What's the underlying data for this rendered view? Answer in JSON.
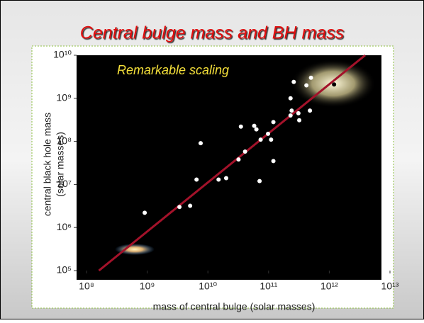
{
  "chart_data": {
    "type": "scatter",
    "title": "Central bulge mass and BH mass",
    "annotation": "Remarkable scaling",
    "x_label": "mass of central bulge (solar masses)",
    "y_label": [
      "central black hole mass",
      "(solar masses)"
    ],
    "log_x": true,
    "log_y": true,
    "xlim": [
      100000000.0,
      10000000000000.0
    ],
    "ylim": [
      100000.0,
      10000000000.0
    ],
    "xticks": [
      {
        "value": 100000000.0,
        "label": "10⁸"
      },
      {
        "value": 1000000000.0,
        "label": "10⁹"
      },
      {
        "value": 10000000000.0,
        "label": "10¹⁰"
      },
      {
        "value": 100000000000.0,
        "label": "10¹¹"
      },
      {
        "value": 1000000000000.0,
        "label": "10¹²"
      },
      {
        "value": 10000000000000.0,
        "label": "10¹³"
      }
    ],
    "yticks": [
      {
        "value": 100000.0,
        "label": "10⁵"
      },
      {
        "value": 1000000.0,
        "label": "10⁶"
      },
      {
        "value": 10000000.0,
        "label": "10⁷"
      },
      {
        "value": 100000000.0,
        "label": "10⁸"
      },
      {
        "value": 1000000000.0,
        "label": "10⁹"
      },
      {
        "value": 10000000000.0,
        "label": "10¹⁰"
      }
    ],
    "series": [
      {
        "color": "#ffffff",
        "x": [
          910000000.0,
          3400000000.0,
          5100000000.0,
          6500000000.0,
          15000000000.0,
          20000000000.0,
          7600000000.0,
          35000000000.0,
          58000000000.0,
          41000000000.0,
          32000000000.0,
          71000000000.0,
          74000000000.0,
          98000000000.0,
          63000000000.0,
          120000000000.0,
          120000000000.0,
          230000000000.0,
          240000000000.0,
          310000000000.0,
          480000000000.0,
          320000000000.0,
          230000000000.0,
          260000000000.0,
          420000000000.0,
          500000000000.0,
          110000000000.0
        ],
        "values": [
          2200000.0,
          3000000.0,
          3200000.0,
          13000000.0,
          13000000.0,
          14000000.0,
          91000000.0,
          220000000.0,
          230000000.0,
          58000000.0,
          38000000.0,
          12000000.0,
          110000000.0,
          150000000.0,
          190000000.0,
          280000000.0,
          35000000.0,
          400000000.0,
          520000000.0,
          450000000.0,
          520000000.0,
          310000000.0,
          1000000000.0,
          2400000000.0,
          2000000000.0,
          3000000000.0,
          110000000.0
        ]
      },
      {
        "color": "#000000",
        "x": [
          1200000000000.0
        ],
        "values": [
          2100000000.0
        ]
      }
    ],
    "fit_line": {
      "color": "#a3122a",
      "x": [
        160000000.0,
        3900000000000.0
      ],
      "values": [
        100000.0,
        10000000000.0
      ]
    }
  }
}
